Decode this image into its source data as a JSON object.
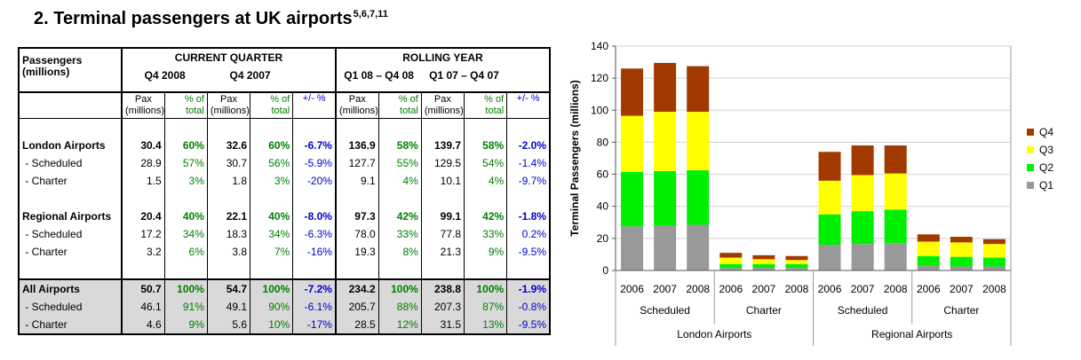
{
  "title": "2.  Terminal passengers at UK airports",
  "title_refs": "5,6,7,11",
  "table": {
    "corner_label": [
      "Passengers",
      "(millions)"
    ],
    "group_headers": [
      "CURRENT QUARTER",
      "ROLLING YEAR"
    ],
    "period_headers": [
      "Q4 2008",
      "Q4 2007",
      "Q1 08 – Q4 08",
      "Q1 07 – Q4 07"
    ],
    "sub_headers": {
      "pax": [
        "Pax",
        "(millions)"
      ],
      "pct": [
        "% of",
        "total"
      ],
      "chg": "+/- %"
    },
    "groups": [
      {
        "rows": [
          {
            "label": "London Airports",
            "cq": [
              "30.4",
              "60%",
              "32.6",
              "60%",
              "-6.7%"
            ],
            "ry": [
              "136.9",
              "58%",
              "139.7",
              "58%",
              "-2.0%"
            ]
          },
          {
            "label": " - Scheduled",
            "cq": [
              "28.9",
              "57%",
              "30.7",
              "56%",
              "-5.9%"
            ],
            "ry": [
              "127.7",
              "55%",
              "129.5",
              "54%",
              "-1.4%"
            ]
          },
          {
            "label": " - Charter",
            "cq": [
              "1.5",
              "3%",
              "1.8",
              "3%",
              "-20%"
            ],
            "ry": [
              "9.1",
              "4%",
              "10.1",
              "4%",
              "-9.7%"
            ]
          }
        ]
      },
      {
        "rows": [
          {
            "label": "Regional Airports",
            "cq": [
              "20.4",
              "40%",
              "22.1",
              "40%",
              "-8.0%"
            ],
            "ry": [
              "97.3",
              "42%",
              "99.1",
              "42%",
              "-1.8%"
            ]
          },
          {
            "label": " - Scheduled",
            "cq": [
              "17.2",
              "34%",
              "18.3",
              "34%",
              "-6.3%"
            ],
            "ry": [
              "78.0",
              "33%",
              "77.8",
              "33%",
              "0.2%"
            ]
          },
          {
            "label": " - Charter",
            "cq": [
              "3.2",
              "6%",
              "3.8",
              "7%",
              "-16%"
            ],
            "ry": [
              "19.3",
              "8%",
              "21.3",
              "9%",
              "-9.5%"
            ]
          }
        ]
      },
      {
        "rows": [
          {
            "label": "All Airports",
            "cq": [
              "50.7",
              "100%",
              "54.7",
              "100%",
              "-7.2%"
            ],
            "ry": [
              "234.2",
              "100%",
              "238.8",
              "100%",
              "-1.9%"
            ]
          },
          {
            "label": " - Scheduled",
            "cq": [
              "46.1",
              "91%",
              "49.1",
              "90%",
              "-6.1%"
            ],
            "ry": [
              "205.7",
              "88%",
              "207.3",
              "87%",
              "-0.8%"
            ]
          },
          {
            "label": " - Charter",
            "cq": [
              "4.6",
              "9%",
              "5.6",
              "10%",
              "-17%"
            ],
            "ry": [
              "28.5",
              "12%",
              "31.5",
              "13%",
              "-9.5%"
            ]
          }
        ]
      }
    ]
  },
  "chart_data": {
    "type": "bar",
    "stacked": true,
    "title": "",
    "xlabel": "",
    "ylabel": "Terminal Passengers (millions)",
    "ylim": [
      0,
      140
    ],
    "yticks": [
      0,
      20,
      40,
      60,
      80,
      100,
      120,
      140
    ],
    "grid": true,
    "legend_position": "right",
    "categories": [
      "2006",
      "2007",
      "2008",
      "2006",
      "2007",
      "2008",
      "2006",
      "2007",
      "2008",
      "2006",
      "2007",
      "2008"
    ],
    "category_groups_level1": [
      "Scheduled",
      "Charter",
      "Scheduled",
      "Charter"
    ],
    "category_groups_level2": [
      "London Airports",
      "Regional Airports"
    ],
    "series": [
      {
        "name": "Q1",
        "color": "#999999",
        "values": [
          27.5,
          28,
          28.5,
          1.5,
          1.6,
          1.5,
          16,
          16.5,
          17,
          3,
          2.5,
          2.5
        ]
      },
      {
        "name": "Q2",
        "color": "#00ee00",
        "values": [
          34,
          34,
          34,
          2.5,
          2.4,
          2.5,
          19,
          20.5,
          21,
          6,
          6,
          5.5
        ]
      },
      {
        "name": "Q3",
        "color": "#ffff00",
        "values": [
          35,
          37,
          36.5,
          4,
          3,
          2.5,
          21,
          22.5,
          22.5,
          9,
          9,
          8.5
        ]
      },
      {
        "name": "Q4",
        "color": "#a23a00",
        "values": [
          29.5,
          30.5,
          28.5,
          3,
          2.5,
          2.5,
          18,
          18.5,
          17.5,
          4.5,
          3.5,
          3
        ]
      }
    ]
  }
}
